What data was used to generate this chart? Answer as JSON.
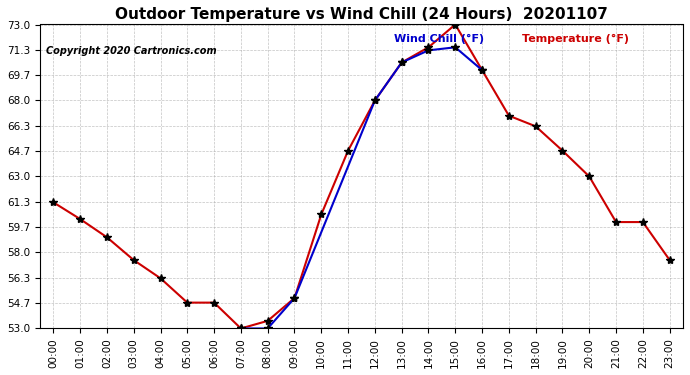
{
  "title": "Outdoor Temperature vs Wind Chill (24 Hours)  20201107",
  "copyright": "Copyright 2020 Cartronics.com",
  "legend_wind_chill": "Wind Chill (°F)",
  "legend_temperature": "Temperature (°F)",
  "hours": [
    "00:00",
    "01:00",
    "02:00",
    "03:00",
    "04:00",
    "05:00",
    "06:00",
    "07:00",
    "08:00",
    "09:00",
    "10:00",
    "11:00",
    "12:00",
    "13:00",
    "14:00",
    "15:00",
    "16:00",
    "17:00",
    "18:00",
    "19:00",
    "20:00",
    "21:00",
    "22:00",
    "23:00"
  ],
  "temperature": [
    61.3,
    60.2,
    59.0,
    57.5,
    56.3,
    54.7,
    54.7,
    53.0,
    53.5,
    55.0,
    60.5,
    64.7,
    68.0,
    70.5,
    71.5,
    73.0,
    70.0,
    67.0,
    66.3,
    64.7,
    63.0,
    60.0,
    60.0,
    57.5
  ],
  "wind_chill": [
    null,
    null,
    null,
    null,
    null,
    null,
    null,
    53.0,
    53.0,
    55.0,
    null,
    null,
    68.0,
    70.5,
    71.3,
    71.5,
    70.0,
    null,
    null,
    null,
    null,
    null,
    null,
    null
  ],
  "ylim_min": 53.0,
  "ylim_max": 73.0,
  "yticks": [
    53.0,
    54.7,
    56.3,
    58.0,
    59.7,
    61.3,
    63.0,
    64.7,
    66.3,
    68.0,
    69.7,
    71.3,
    73.0
  ],
  "temp_color": "#cc0000",
  "wind_chill_color": "#0000cc",
  "bg_color": "#ffffff",
  "grid_color": "#aaaaaa",
  "marker": "*",
  "marker_color": "#000000",
  "marker_size": 6
}
